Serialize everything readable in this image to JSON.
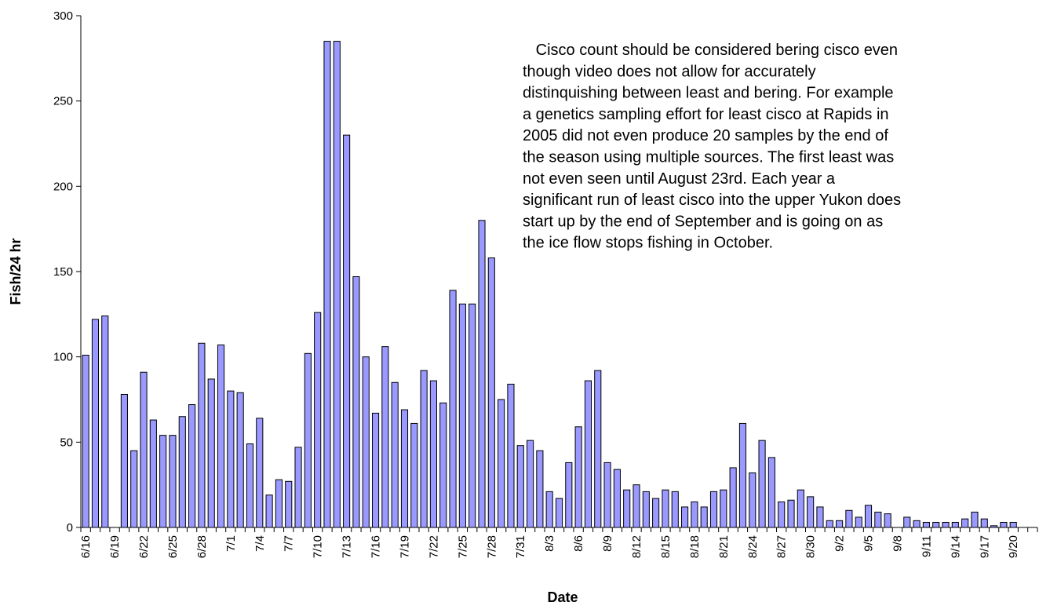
{
  "chart_data": {
    "type": "bar",
    "y_label": "Fish/24 hr",
    "x_label": "Date",
    "annotation": [
      "   Cisco count should be considered bering cisco even",
      "though video does not allow for accurately",
      "distinquishing between least and bering. For example",
      "a genetics sampling effort for least cisco at Rapids in",
      "2005 did not even produce 20 samples by the end of",
      "the season using multiple sources. The first least was",
      "not even seen until August 23rd. Each year a",
      "significant run of least cisco into the upper Yukon does",
      "start up by the end of September and is going on as",
      "the ice flow stops fishing in October."
    ],
    "categories": [
      "6/16",
      null,
      null,
      "6/19",
      null,
      null,
      "6/22",
      null,
      null,
      "6/25",
      null,
      null,
      "6/28",
      null,
      null,
      "7/1",
      null,
      null,
      "7/4",
      null,
      null,
      "7/7",
      null,
      null,
      "7/10",
      null,
      null,
      "7/13",
      null,
      null,
      "7/16",
      null,
      null,
      "7/19",
      null,
      null,
      "7/22",
      null,
      null,
      "7/25",
      null,
      null,
      "7/28",
      null,
      null,
      "7/31",
      null,
      null,
      "8/3",
      null,
      null,
      "8/6",
      null,
      null,
      "8/9",
      null,
      null,
      "8/12",
      null,
      null,
      "8/15",
      null,
      null,
      "8/18",
      null,
      null,
      "8/21",
      null,
      null,
      "8/24",
      null,
      null,
      "8/27",
      null,
      null,
      "8/30",
      null,
      null,
      "9/2",
      null,
      null,
      "9/5",
      null,
      null,
      "9/8",
      null,
      null,
      "9/11",
      null,
      null,
      "9/14",
      null,
      null,
      "9/17",
      null,
      null,
      "9/20",
      null,
      null
    ],
    "values": [
      101,
      122,
      124,
      0,
      78,
      45,
      91,
      63,
      54,
      54,
      65,
      72,
      108,
      87,
      107,
      80,
      79,
      49,
      64,
      19,
      28,
      27,
      47,
      102,
      126,
      285,
      285,
      230,
      147,
      100,
      67,
      106,
      85,
      69,
      61,
      92,
      86,
      73,
      139,
      131,
      131,
      180,
      158,
      75,
      84,
      48,
      51,
      45,
      21,
      17,
      38,
      59,
      86,
      92,
      38,
      34,
      22,
      25,
      21,
      17,
      22,
      21,
      12,
      15,
      12,
      21,
      22,
      35,
      61,
      32,
      51,
      41,
      15,
      16,
      22,
      18,
      12,
      4,
      4,
      10,
      6,
      13,
      9,
      8,
      0,
      6,
      4,
      3,
      3,
      3,
      3,
      5,
      9,
      5,
      1,
      3,
      3,
      0,
      0
    ],
    "color": "#9999ff",
    "ylim": [
      0,
      300
    ],
    "yticks": [
      0,
      50,
      100,
      150,
      200,
      250,
      300
    ]
  }
}
